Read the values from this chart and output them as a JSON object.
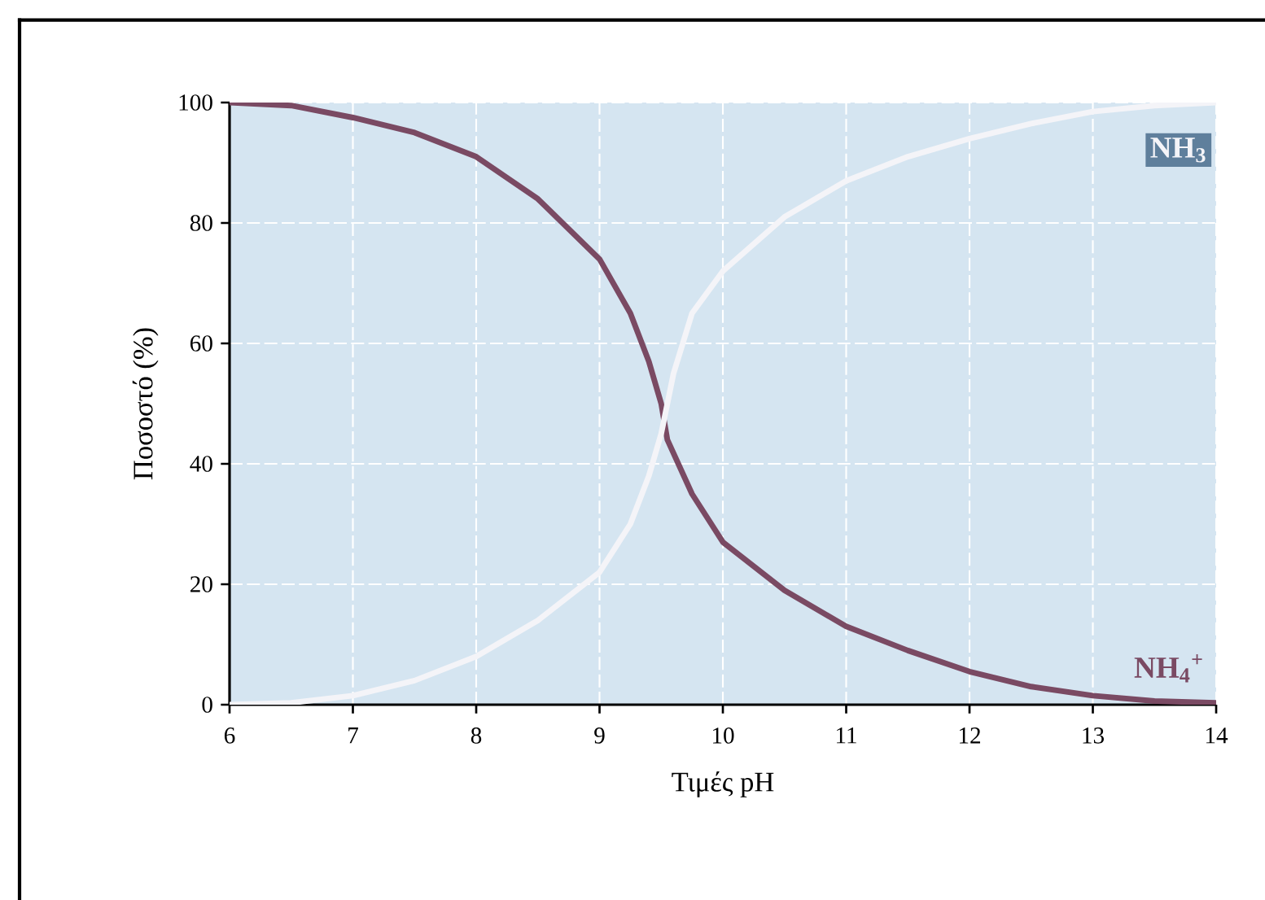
{
  "chart_data": {
    "type": "line",
    "xlabel": "Τιμές pH",
    "ylabel": "Ποσοστό (%)",
    "xlim": [
      6,
      14
    ],
    "xticks": [
      6,
      7,
      8,
      9,
      10,
      11,
      12,
      13,
      14
    ],
    "ylim": [
      0,
      100
    ],
    "yticks": [
      0,
      20,
      40,
      60,
      80,
      100
    ],
    "grid": true,
    "legend": false,
    "marker": "none",
    "line_style": "solid",
    "series": [
      {
        "name": "NH$_{4}$$^{+}$",
        "color": "#7a4a63",
        "x": [
          6,
          6.5,
          7,
          7.5,
          8,
          8.5,
          9,
          9.25,
          9.4,
          9.5,
          9.55,
          9.75,
          10,
          10.5,
          11,
          11.5,
          12,
          12.5,
          13,
          13.5,
          14
        ],
        "values": [
          100,
          99.5,
          97.5,
          95,
          91,
          84,
          74,
          65,
          57,
          50,
          44,
          35,
          27,
          19,
          13,
          9,
          5.5,
          3,
          1.5,
          0.6,
          0.3
        ]
      },
      {
        "name": "NH$_{3}$",
        "color": "#f4f4f8",
        "x": [
          6,
          6.5,
          7,
          7.5,
          8,
          8.5,
          9,
          9.25,
          9.4,
          9.5,
          9.6,
          9.75,
          10,
          10.5,
          11,
          11.5,
          12,
          12.5,
          13,
          13.5,
          14
        ],
        "values": [
          0,
          0.3,
          1.5,
          4,
          8,
          14,
          22,
          30,
          38,
          45,
          55,
          65,
          72,
          81,
          87,
          91,
          94,
          96.5,
          98.5,
          99.5,
          100
        ]
      }
    ]
  }
}
